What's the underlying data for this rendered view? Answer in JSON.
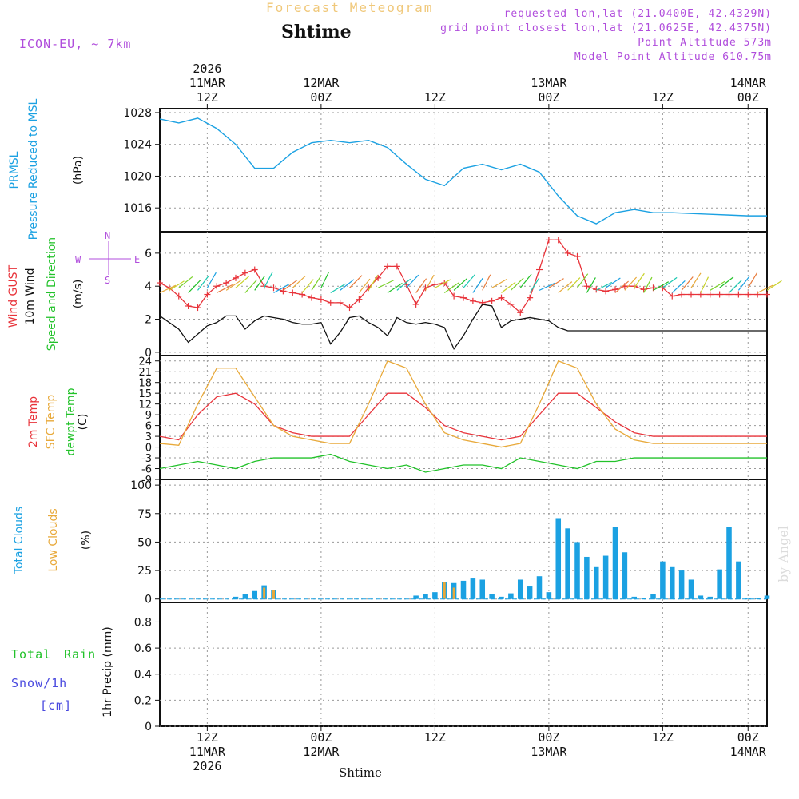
{
  "header": {
    "faint_title": "Forecast Meteogram",
    "location": "Shtime",
    "model": "ICON-EU, ~ 7km",
    "requested": "requested lon,lat (21.0400E, 42.4329N)",
    "gridpoint": "grid point closest lon,lat (21.0625E, 42.4375N)",
    "point_alt": "Point Altitude 573m",
    "model_alt": "Model Point Altitude 610.75m",
    "credit": "by Angel"
  },
  "time_axis": {
    "top_ticks": [
      {
        "hour": "12Z",
        "date": "11MAR",
        "year": "2026"
      },
      {
        "hour": "00Z",
        "date": "12MAR",
        "year": ""
      },
      {
        "hour": "12Z",
        "date": "",
        "year": ""
      },
      {
        "hour": "00Z",
        "date": "13MAR",
        "year": ""
      },
      {
        "hour": "12Z",
        "date": "",
        "year": ""
      },
      {
        "hour": "00Z",
        "date": "14MAR",
        "year": ""
      }
    ],
    "bottom_ticks": [
      {
        "hour": "12Z",
        "date": "11MAR",
        "year": "2026"
      },
      {
        "hour": "00Z",
        "date": "12MAR",
        "year": ""
      },
      {
        "hour": "12Z",
        "date": "",
        "year": ""
      },
      {
        "hour": "00Z",
        "date": "13MAR",
        "year": ""
      },
      {
        "hour": "12Z",
        "date": "",
        "year": ""
      },
      {
        "hour": "00Z",
        "date": "14MAR",
        "year": ""
      }
    ],
    "bottom_label": "Shtime"
  },
  "labels": {
    "pressure": {
      "l1": "PRMSL",
      "l2": "Pressure Reduced to MSL",
      "unit": "(hPa)"
    },
    "wind": {
      "l1": "Wind GUST",
      "l2": "10m Wind",
      "l3": "Speed and Direction",
      "unit": "(m/s)",
      "compass_n": "N",
      "compass_s": "S",
      "compass_w": "W",
      "compass_e": "E"
    },
    "temp": {
      "l1": "2m Temp",
      "l2": "SFC Temp",
      "l3": "dewpt Temp",
      "unit": "(C)"
    },
    "clouds": {
      "l1": "Total Clouds",
      "l2": "Low Clouds",
      "unit": "(%)"
    },
    "precip": {
      "l1": "Total",
      "l2": "Rain",
      "l3": "Snow/1h",
      "l4": "[cm]",
      "unit": "1hr Precip (mm)"
    }
  },
  "colors": {
    "pressure": "#1ba1e2",
    "gust": "#e8333a",
    "wind": "#111111",
    "t2m": "#e8333a",
    "sfc": "#e8a93a",
    "dewpt": "#22c22a",
    "total_clouds": "#1ba1e2",
    "low_clouds": "#e8a93a"
  },
  "chart_data": [
    {
      "type": "line",
      "name": "pressure",
      "title": "PRMSL Pressure Reduced to MSL",
      "ylabel": "hPa",
      "ylim": [
        1013,
        1028.5
      ],
      "yticks": [
        1016,
        1020,
        1024,
        1028
      ],
      "xlim": [
        0,
        64
      ],
      "x": [
        0,
        2,
        4,
        6,
        8,
        10,
        12,
        14,
        16,
        18,
        20,
        22,
        24,
        26,
        28,
        30,
        32,
        34,
        36,
        38,
        40,
        42,
        44,
        46,
        48,
        50,
        52,
        54,
        56,
        58,
        60,
        62,
        64
      ],
      "values": [
        1027.2,
        1026.7,
        1027.3,
        1026.0,
        1024.0,
        1021.0,
        1021.0,
        1023.0,
        1024.2,
        1024.5,
        1024.2,
        1024.5,
        1023.6,
        1021.5,
        1019.6,
        1018.8,
        1021.0,
        1021.5,
        1020.8,
        1021.5,
        1020.5,
        1017.5,
        1015.0,
        1014.0,
        1015.4,
        1015.8,
        1015.4,
        1015.4,
        1015.3,
        1015.2,
        1015.1,
        1015.0,
        1015.0
      ]
    },
    {
      "type": "line",
      "name": "wind",
      "title": "Wind GUST / 10m Wind",
      "ylabel": "m/s",
      "ylim": [
        -0.2,
        7.3
      ],
      "yticks": [
        0,
        2,
        4,
        6
      ],
      "xlim": [
        0,
        64
      ],
      "series": [
        {
          "name": "Wind GUST",
          "x": [
            0,
            1,
            2,
            3,
            4,
            5,
            6,
            7,
            8,
            9,
            10,
            11,
            12,
            13,
            14,
            15,
            16,
            17,
            18,
            19,
            20,
            21,
            22,
            23,
            24,
            25,
            26,
            27,
            28,
            29,
            30,
            31,
            32,
            33,
            34,
            35,
            36,
            37,
            38,
            39,
            40,
            41,
            42,
            43,
            44,
            45,
            46,
            47,
            48,
            49,
            50,
            51,
            52,
            53,
            54,
            55,
            56,
            57,
            58,
            59,
            60,
            61,
            62,
            63,
            64
          ],
          "values": [
            4.2,
            3.9,
            3.4,
            2.8,
            2.7,
            3.5,
            4.0,
            4.2,
            4.5,
            4.8,
            5.0,
            4.0,
            3.9,
            3.7,
            3.6,
            3.5,
            3.3,
            3.2,
            3.0,
            3.0,
            2.7,
            3.2,
            3.9,
            4.5,
            5.2,
            5.2,
            4.1,
            2.9,
            3.9,
            4.1,
            4.2,
            3.4,
            3.3,
            3.1,
            3.0,
            3.1,
            3.3,
            2.9,
            2.4,
            3.3,
            5.0,
            6.8,
            6.8,
            6.0,
            5.8,
            4.0,
            3.8,
            3.7,
            3.8,
            4.0,
            4.0,
            3.8,
            3.9,
            3.9,
            3.4,
            3.5,
            3.5,
            3.5,
            3.5,
            3.5,
            3.5,
            3.5,
            3.5,
            3.5,
            3.5
          ]
        },
        {
          "name": "10m Wind",
          "x": [
            0,
            1,
            2,
            3,
            4,
            5,
            6,
            7,
            8,
            9,
            10,
            11,
            12,
            13,
            14,
            15,
            16,
            17,
            18,
            19,
            20,
            21,
            22,
            23,
            24,
            25,
            26,
            27,
            28,
            29,
            30,
            31,
            32,
            33,
            34,
            35,
            36,
            37,
            38,
            39,
            40,
            41,
            42,
            43,
            44,
            45,
            46,
            47,
            48,
            49,
            50,
            51,
            52,
            53,
            54,
            55,
            56,
            57,
            58,
            59,
            60,
            61,
            62,
            63,
            64
          ],
          "values": [
            2.2,
            1.8,
            1.4,
            0.6,
            1.1,
            1.6,
            1.8,
            2.2,
            2.2,
            1.4,
            1.9,
            2.2,
            2.1,
            2.0,
            1.8,
            1.7,
            1.7,
            1.8,
            0.5,
            1.2,
            2.1,
            2.2,
            1.8,
            1.5,
            1.0,
            2.1,
            1.8,
            1.7,
            1.8,
            1.7,
            1.5,
            0.2,
            1.0,
            2.0,
            2.9,
            2.8,
            1.5,
            1.9,
            2.0,
            2.1,
            2.0,
            1.9,
            1.5,
            1.3,
            1.3,
            1.3,
            1.3,
            1.3,
            1.3,
            1.3,
            1.3,
            1.3,
            1.3,
            1.3,
            1.3,
            1.3,
            1.3,
            1.3,
            1.3,
            1.3,
            1.3,
            1.3,
            1.3,
            1.3,
            1.3
          ]
        }
      ]
    },
    {
      "type": "line",
      "name": "temperature",
      "title": "2m Temp / SFC Temp / dewpt Temp",
      "ylabel": "C",
      "ylim": [
        -9,
        25.5
      ],
      "yticks": [
        -9,
        -6,
        -3,
        0,
        3,
        6,
        9,
        12,
        15,
        18,
        21,
        24
      ],
      "xlim": [
        0,
        64
      ],
      "series": [
        {
          "name": "2m Temp",
          "x": [
            0,
            2,
            4,
            6,
            8,
            10,
            12,
            14,
            16,
            18,
            20,
            22,
            24,
            26,
            28,
            30,
            32,
            34,
            36,
            38,
            40,
            42,
            44,
            46,
            48,
            50,
            52,
            54,
            56,
            58,
            60,
            62,
            64
          ],
          "values": [
            3,
            2,
            9,
            14,
            15,
            12,
            6,
            4,
            3,
            3,
            3,
            9,
            15,
            15,
            11,
            6,
            4,
            3,
            2,
            3,
            9,
            15,
            15,
            11,
            7,
            4,
            3,
            3,
            3,
            3,
            3,
            3,
            3
          ]
        },
        {
          "name": "SFC Temp",
          "x": [
            0,
            2,
            4,
            6,
            8,
            10,
            12,
            14,
            16,
            18,
            20,
            22,
            24,
            26,
            28,
            30,
            32,
            34,
            36,
            38,
            40,
            42,
            44,
            46,
            48,
            50,
            52,
            54,
            56,
            58,
            60,
            62,
            64
          ],
          "values": [
            1,
            0.5,
            12,
            22,
            22,
            14,
            6,
            3,
            2,
            1,
            1,
            12,
            24,
            22,
            12,
            4,
            2,
            1,
            0,
            1,
            12,
            24,
            22,
            12,
            5,
            2,
            1,
            1,
            1,
            1,
            1,
            1,
            1
          ]
        },
        {
          "name": "dewpt Temp",
          "x": [
            0,
            2,
            4,
            6,
            8,
            10,
            12,
            14,
            16,
            18,
            20,
            22,
            24,
            26,
            28,
            30,
            32,
            34,
            36,
            38,
            40,
            42,
            44,
            46,
            48,
            50,
            52,
            54,
            56,
            58,
            60,
            62,
            64
          ],
          "values": [
            -6,
            -5,
            -4,
            -5,
            -6,
            -4,
            -3,
            -3,
            -3,
            -2,
            -4,
            -5,
            -6,
            -5,
            -7,
            -6,
            -5,
            -5,
            -6,
            -3,
            -4,
            -5,
            -6,
            -4,
            -4,
            -3,
            -3,
            -3,
            -3,
            -3,
            -3,
            -3,
            -3
          ]
        }
      ]
    },
    {
      "type": "bar",
      "name": "clouds",
      "title": "Total Clouds / Low Clouds",
      "ylabel": "%",
      "ylim": [
        -3,
        105
      ],
      "yticks": [
        0,
        25,
        50,
        75,
        100
      ],
      "xlim": [
        0,
        64
      ],
      "series": [
        {
          "name": "Total Clouds",
          "x": [
            8,
            9,
            10,
            11,
            12,
            27,
            28,
            29,
            30,
            31,
            32,
            33,
            34,
            35,
            36,
            37,
            38,
            39,
            40,
            41,
            42,
            43,
            44,
            45,
            46,
            47,
            48,
            49,
            50,
            51,
            52,
            53,
            54,
            55,
            56,
            57,
            58,
            59,
            60,
            61,
            62,
            63,
            64
          ],
          "values": [
            2,
            4,
            7,
            12,
            8,
            3,
            4,
            6,
            15,
            14,
            16,
            18,
            17,
            4,
            2,
            5,
            17,
            11,
            20,
            6,
            71,
            62,
            50,
            37,
            28,
            38,
            63,
            41,
            2,
            1,
            4,
            33,
            28,
            25,
            17,
            3,
            2,
            26,
            63,
            33,
            1,
            1,
            3
          ]
        },
        {
          "name": "Low Clouds",
          "x": [
            11,
            12,
            30,
            31
          ],
          "values": [
            10,
            8,
            15,
            10
          ]
        }
      ]
    },
    {
      "type": "line",
      "name": "precip",
      "title": "1hr Precip",
      "ylabel": "1hr Precip (mm)",
      "ylim": [
        0,
        0.95
      ],
      "yticks": [
        0,
        0.2,
        0.4,
        0.6,
        0.8
      ],
      "xlim": [
        0,
        64
      ],
      "series": [
        {
          "name": "Total Rain",
          "values": []
        }
      ]
    }
  ]
}
